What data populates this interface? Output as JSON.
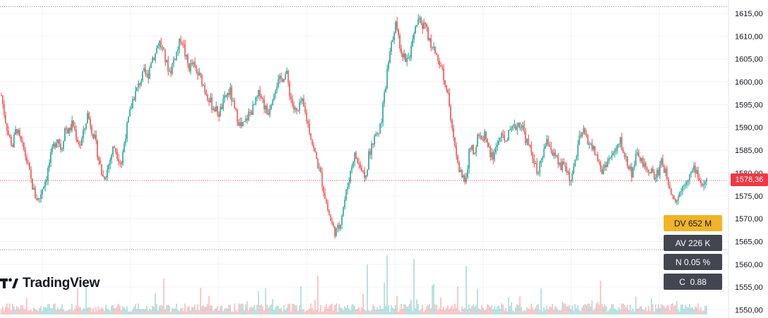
{
  "brand": {
    "name": "TradingView",
    "logo_icon": "tradingview-logo-icon"
  },
  "stats": {
    "dv": "DV 652 M",
    "av": "AV 226 K",
    "n": "N 0.05 %",
    "c": "C  0.88"
  },
  "last_price_label": "1578,36",
  "colors": {
    "up": "#26a69a",
    "down": "#ef5350",
    "price_tag": "#f23645",
    "dv_box": "#f0b429",
    "stats_box": "#434651",
    "grid": "#f0f3fa"
  },
  "chart_data": {
    "type": "candlestick",
    "title": "",
    "xlabel": "",
    "ylabel": "",
    "ylim": [
      1549,
      1617
    ],
    "grid": true,
    "y_ticks": [
      "1615,00",
      "1610,00",
      "1605,00",
      "1600,00",
      "1595,00",
      "1590,00",
      "1585,00",
      "1580,00",
      "1575,00",
      "1570,00",
      "1565,00",
      "1560,00",
      "1555,00",
      "1550,00"
    ],
    "y_tick_values": [
      1615,
      1610,
      1605,
      1600,
      1595,
      1590,
      1585,
      1580,
      1575,
      1570,
      1565,
      1560,
      1555,
      1550
    ],
    "last_price": 1578.36,
    "period_high": 1616.5,
    "period_low": 1563.2,
    "close_path": [
      1597,
      1592,
      1588,
      1586,
      1590,
      1587,
      1585,
      1582,
      1578,
      1575,
      1574,
      1577,
      1579,
      1583,
      1586,
      1588,
      1585,
      1590,
      1589,
      1591,
      1588,
      1586,
      1589,
      1593,
      1590,
      1587,
      1583,
      1579,
      1580,
      1583,
      1586,
      1584,
      1582,
      1588,
      1592,
      1596,
      1598,
      1600,
      1602,
      1601,
      1605,
      1606,
      1609,
      1607,
      1604,
      1602,
      1605,
      1607,
      1610,
      1606,
      1603,
      1604,
      1602,
      1601,
      1599,
      1597,
      1595,
      1594,
      1593,
      1595,
      1597,
      1598,
      1594,
      1592,
      1590,
      1591,
      1593,
      1594,
      1596,
      1598,
      1595,
      1593,
      1596,
      1599,
      1600,
      1601,
      1602,
      1597,
      1594,
      1593,
      1596,
      1593,
      1590,
      1586,
      1583,
      1580,
      1576,
      1572,
      1569,
      1567,
      1568,
      1572,
      1576,
      1580,
      1584,
      1583,
      1581,
      1578,
      1584,
      1587,
      1588,
      1590,
      1596,
      1603,
      1608,
      1613,
      1609,
      1606,
      1605,
      1606,
      1610,
      1614,
      1612,
      1613,
      1609,
      1607,
      1606,
      1604,
      1601,
      1598,
      1590,
      1585,
      1581,
      1578,
      1580,
      1586,
      1584,
      1588,
      1587,
      1589,
      1585,
      1583,
      1586,
      1588,
      1587,
      1588,
      1589,
      1590,
      1591,
      1590,
      1587,
      1585,
      1583,
      1579,
      1583,
      1586,
      1587,
      1584,
      1583,
      1581,
      1582,
      1580,
      1578,
      1583,
      1587,
      1589,
      1588,
      1586,
      1585,
      1583,
      1580,
      1582,
      1583,
      1584,
      1585,
      1587,
      1584,
      1582,
      1580,
      1583,
      1584,
      1582,
      1580,
      1581,
      1579,
      1580,
      1583,
      1580,
      1578,
      1575,
      1574,
      1576,
      1578,
      1579,
      1580,
      1581,
      1579,
      1577,
      1578
    ],
    "volume": {
      "label": "Volume",
      "note": "histogram along bottom, green/red bars"
    }
  }
}
